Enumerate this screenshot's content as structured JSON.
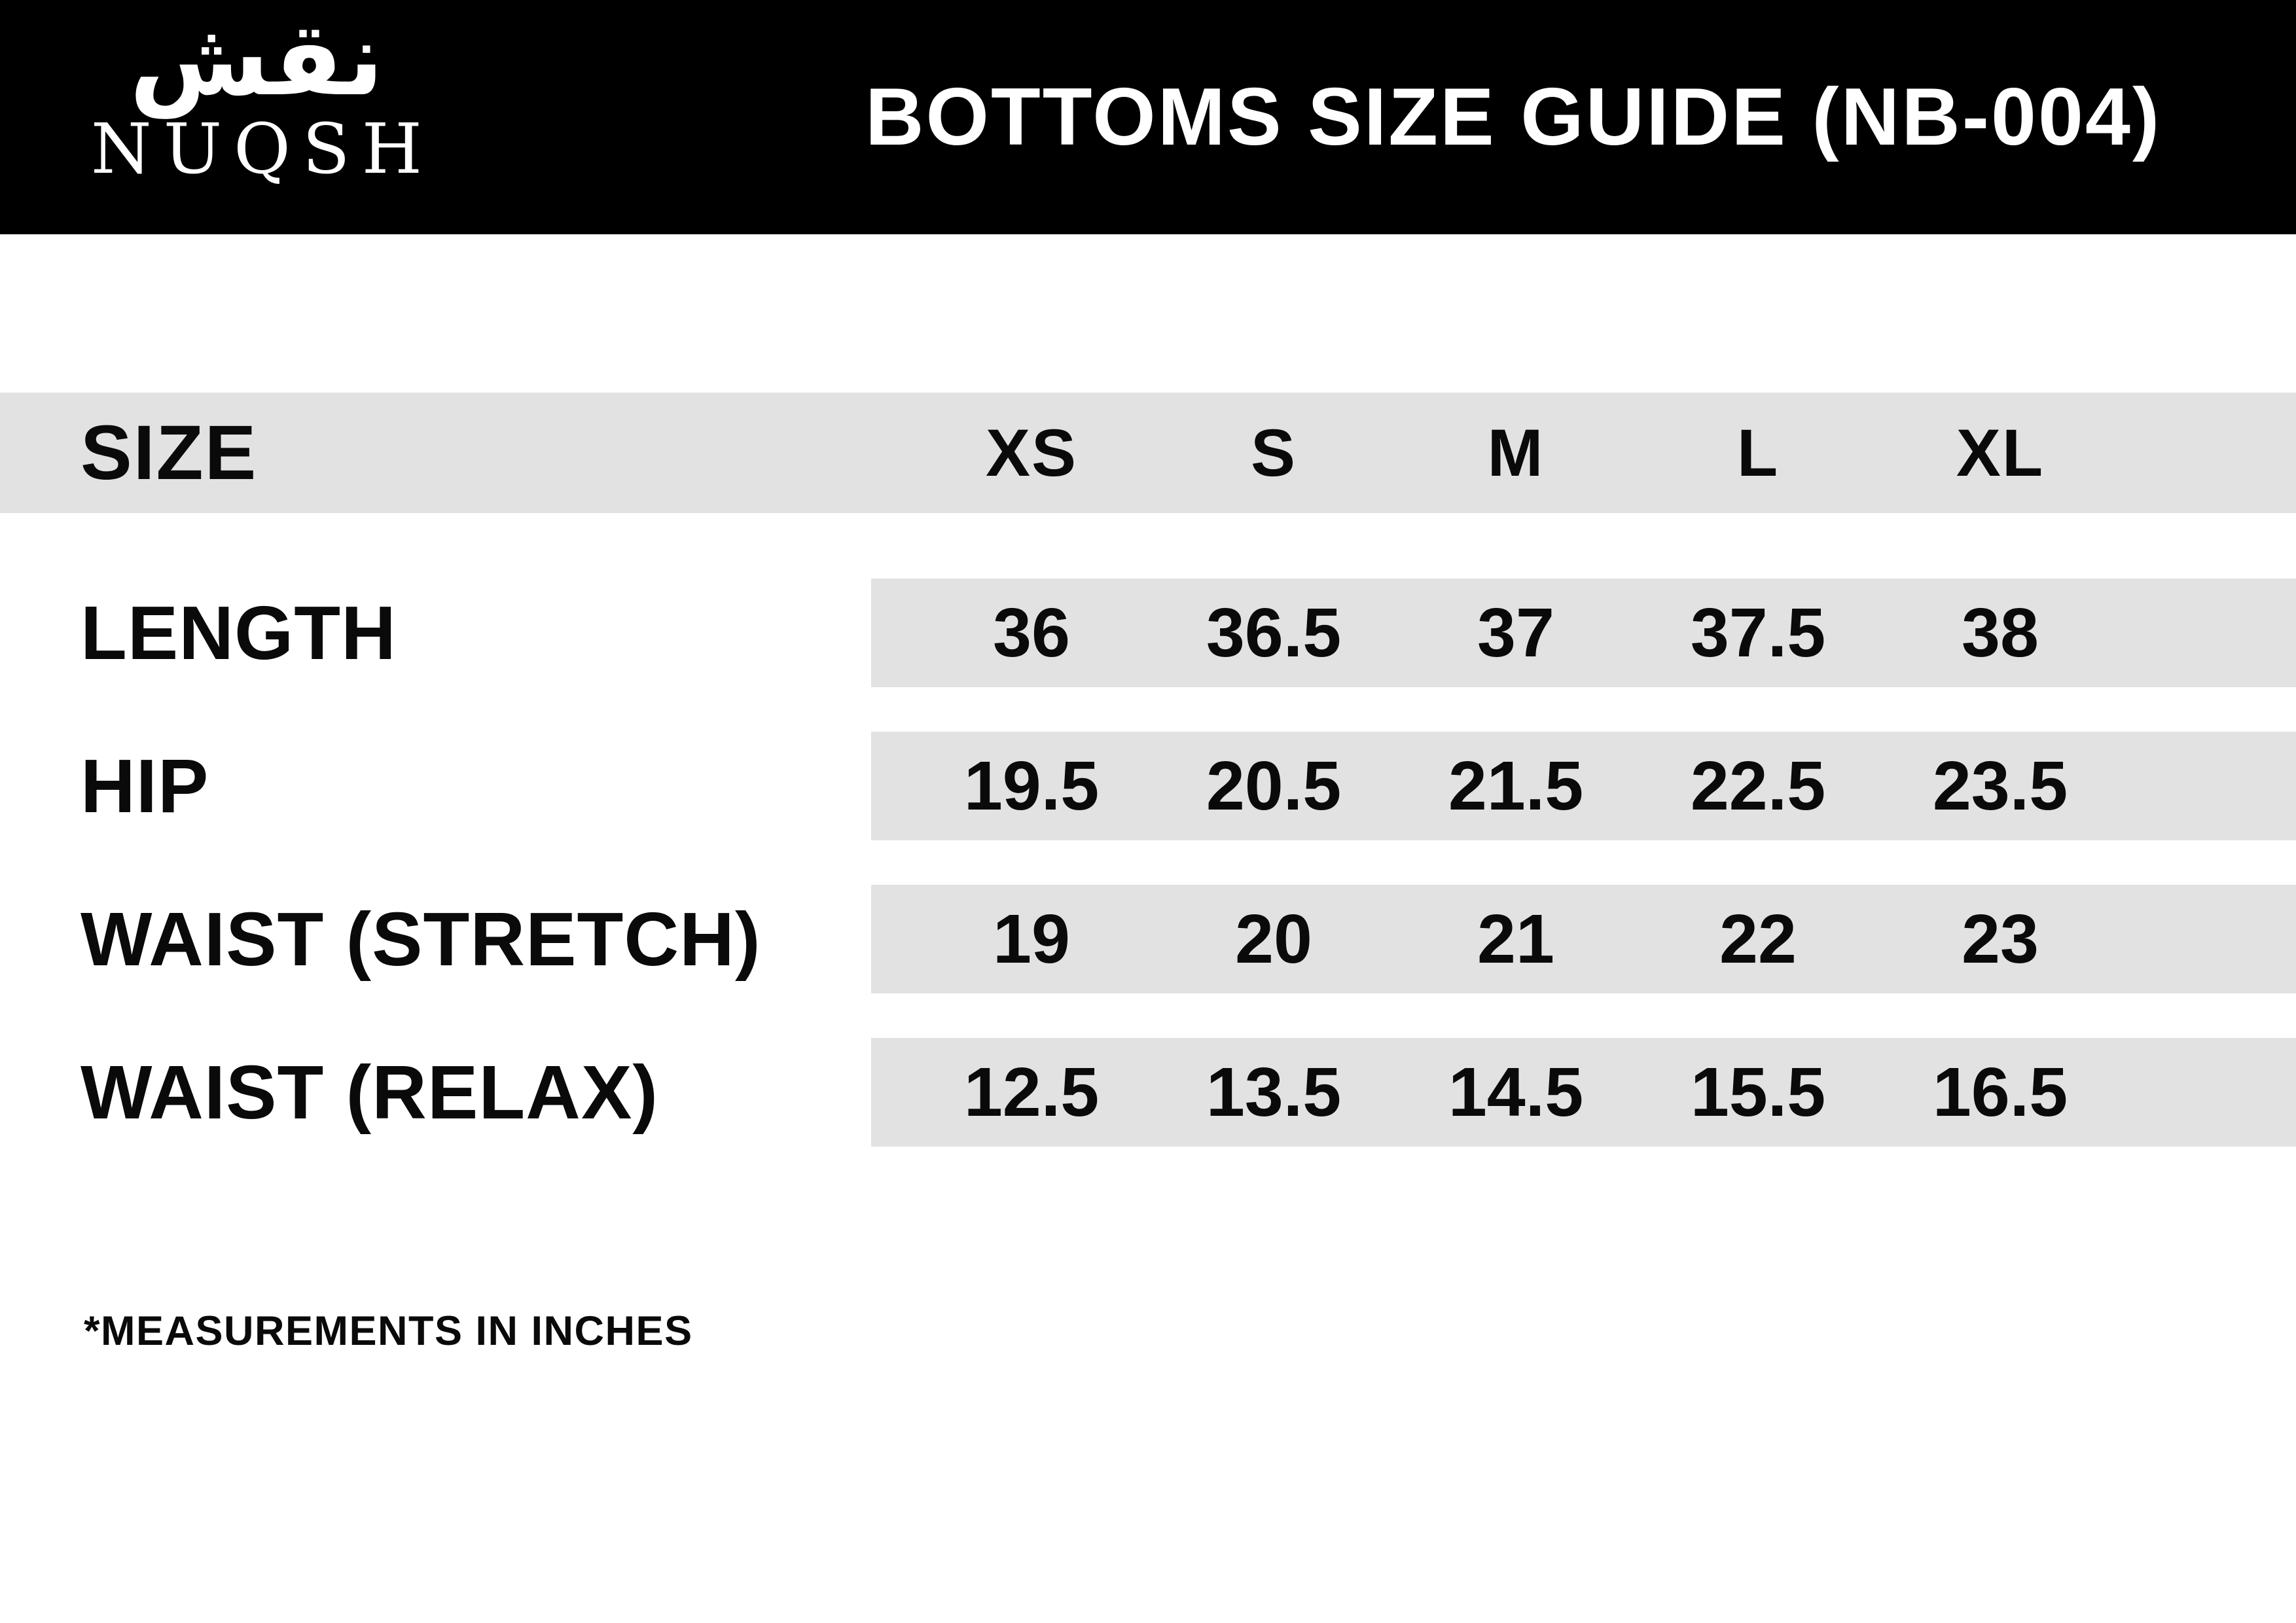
{
  "brand": {
    "logo_arabic": "نقش",
    "logo_name": "NUQSH"
  },
  "header": {
    "title": "BOTTOMS SIZE GUIDE (NB-004)"
  },
  "table": {
    "size_label": "SIZE",
    "sizes": [
      "XS",
      "S",
      "M",
      "L",
      "XL"
    ],
    "rows": [
      {
        "label": "LENGTH",
        "values": [
          "36",
          "36.5",
          "37",
          "37.5",
          "38"
        ]
      },
      {
        "label": "HIP",
        "values": [
          "19.5",
          "20.5",
          "21.5",
          "22.5",
          "23.5"
        ]
      },
      {
        "label": "WAIST (STRETCH)",
        "values": [
          "19",
          "20",
          "21",
          "22",
          "23"
        ]
      },
      {
        "label": "WAIST (RELAX)",
        "values": [
          "12.5",
          "13.5",
          "14.5",
          "15.5",
          "16.5"
        ]
      }
    ]
  },
  "footnote": "*MEASUREMENTS IN INCHES",
  "colors": {
    "header_bg": "#000000",
    "header_fg": "#ffffff",
    "row_bg": "#e2e2e2",
    "text": "#0a0a0a",
    "page_bg": "#ffffff"
  }
}
